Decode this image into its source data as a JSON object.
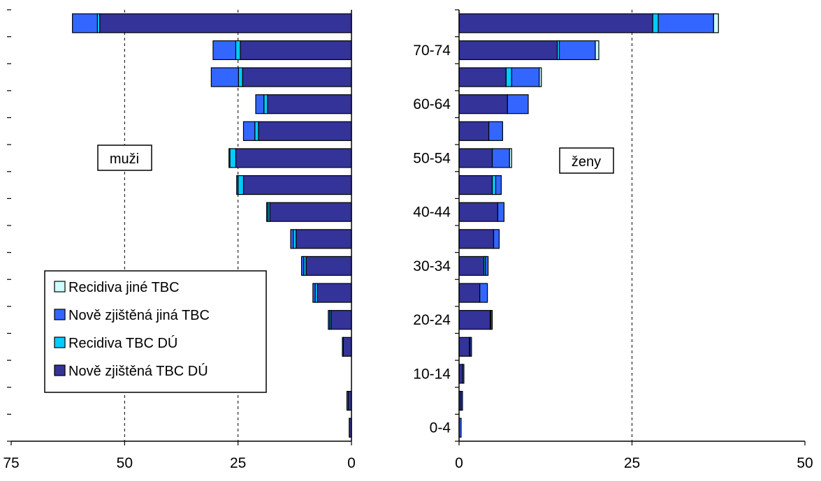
{
  "colors": {
    "recidiva_jine": "#ccffff",
    "nove_jina": "#3366ff",
    "recidiva_du": "#00ccff",
    "nove_du": "#333399",
    "axis": "#000000",
    "grid": "#000000"
  },
  "legend": {
    "items": [
      {
        "key": "recidiva_jine",
        "label": "Recidiva jiné TBC"
      },
      {
        "key": "nove_jina",
        "label": "Nově zjištěná jiná TBC"
      },
      {
        "key": "recidiva_du",
        "label": "Recidiva TBC DÚ"
      },
      {
        "key": "nove_du",
        "label": "Nově zjištěná TBC DÚ"
      }
    ]
  },
  "chart_data": [
    {
      "type": "bar",
      "orientation": "horizontal",
      "stacked": true,
      "reversed_x": true,
      "panel_label": "muži",
      "x_ticks": [
        75,
        50,
        25,
        0
      ],
      "xlim": [
        0,
        75
      ],
      "series": [
        {
          "key": "nove_du",
          "name": "Nově zjištěná TBC DÚ",
          "values": [
            0.5,
            0.7,
            0,
            1.8,
            4.5,
            7.5,
            10,
            12.2,
            18,
            23.8,
            25.5,
            20.5,
            18.5,
            24,
            24.5,
            55.5
          ]
        },
        {
          "key": "recidiva_du",
          "name": "Recidiva TBC DÚ",
          "values": [
            0,
            0,
            0,
            0.2,
            0.3,
            0.5,
            0.5,
            0.6,
            0.4,
            1.2,
            1.3,
            0.8,
            0.8,
            0.9,
            1.0,
            0.5
          ]
        },
        {
          "key": "nove_jina",
          "name": "Nově zjištěná jiná TBC",
          "values": [
            0,
            0.3,
            0,
            0,
            0.3,
            0.5,
            0.5,
            0.6,
            0.3,
            0.3,
            0.2,
            2.5,
            1.8,
            6.0,
            5.0,
            5.5
          ]
        },
        {
          "key": "recidiva_jine",
          "name": "Recidiva jiné TBC",
          "values": [
            0,
            0,
            0,
            0,
            0,
            0,
            0,
            0,
            0,
            0,
            0,
            0,
            0,
            0,
            0,
            0
          ]
        }
      ]
    },
    {
      "type": "bar",
      "orientation": "horizontal",
      "stacked": true,
      "panel_label": "ženy",
      "categories": [
        "0-4",
        "",
        "10-14",
        "",
        "20-24",
        "",
        "30-34",
        "",
        "40-44",
        "",
        "50-54",
        "",
        "60-64",
        "",
        "70-74",
        ""
      ],
      "x_ticks": [
        0,
        25,
        50
      ],
      "xlim": [
        0,
        50
      ],
      "series": [
        {
          "key": "nove_du",
          "name": "Nově zjištěná TBC DÚ",
          "values": [
            0,
            0.3,
            0.5,
            1.5,
            4.5,
            3.0,
            3.6,
            5.0,
            5.6,
            4.8,
            4.8,
            4.3,
            7.0,
            6.8,
            14.2,
            28.0
          ]
        },
        {
          "key": "recidiva_du",
          "name": "Recidiva TBC DÚ",
          "values": [
            0,
            0,
            0,
            0.1,
            0.1,
            0,
            0.2,
            0,
            0,
            0.5,
            0,
            0,
            0,
            0.8,
            0.3,
            0.8
          ]
        },
        {
          "key": "nove_jina",
          "name": "Nově zjištěná jiná TBC",
          "values": [
            0.3,
            0.2,
            0.2,
            0.2,
            0.2,
            1.1,
            0.4,
            0.8,
            0.9,
            0.8,
            2.5,
            2.0,
            3.0,
            4.0,
            5.2,
            8.0
          ]
        },
        {
          "key": "recidiva_jine",
          "name": "Recidiva jiné TBC",
          "values": [
            0,
            0,
            0,
            0,
            0,
            0,
            0,
            0,
            0,
            0,
            0.3,
            0,
            0,
            0.3,
            0.5,
            0.7
          ]
        }
      ]
    }
  ]
}
